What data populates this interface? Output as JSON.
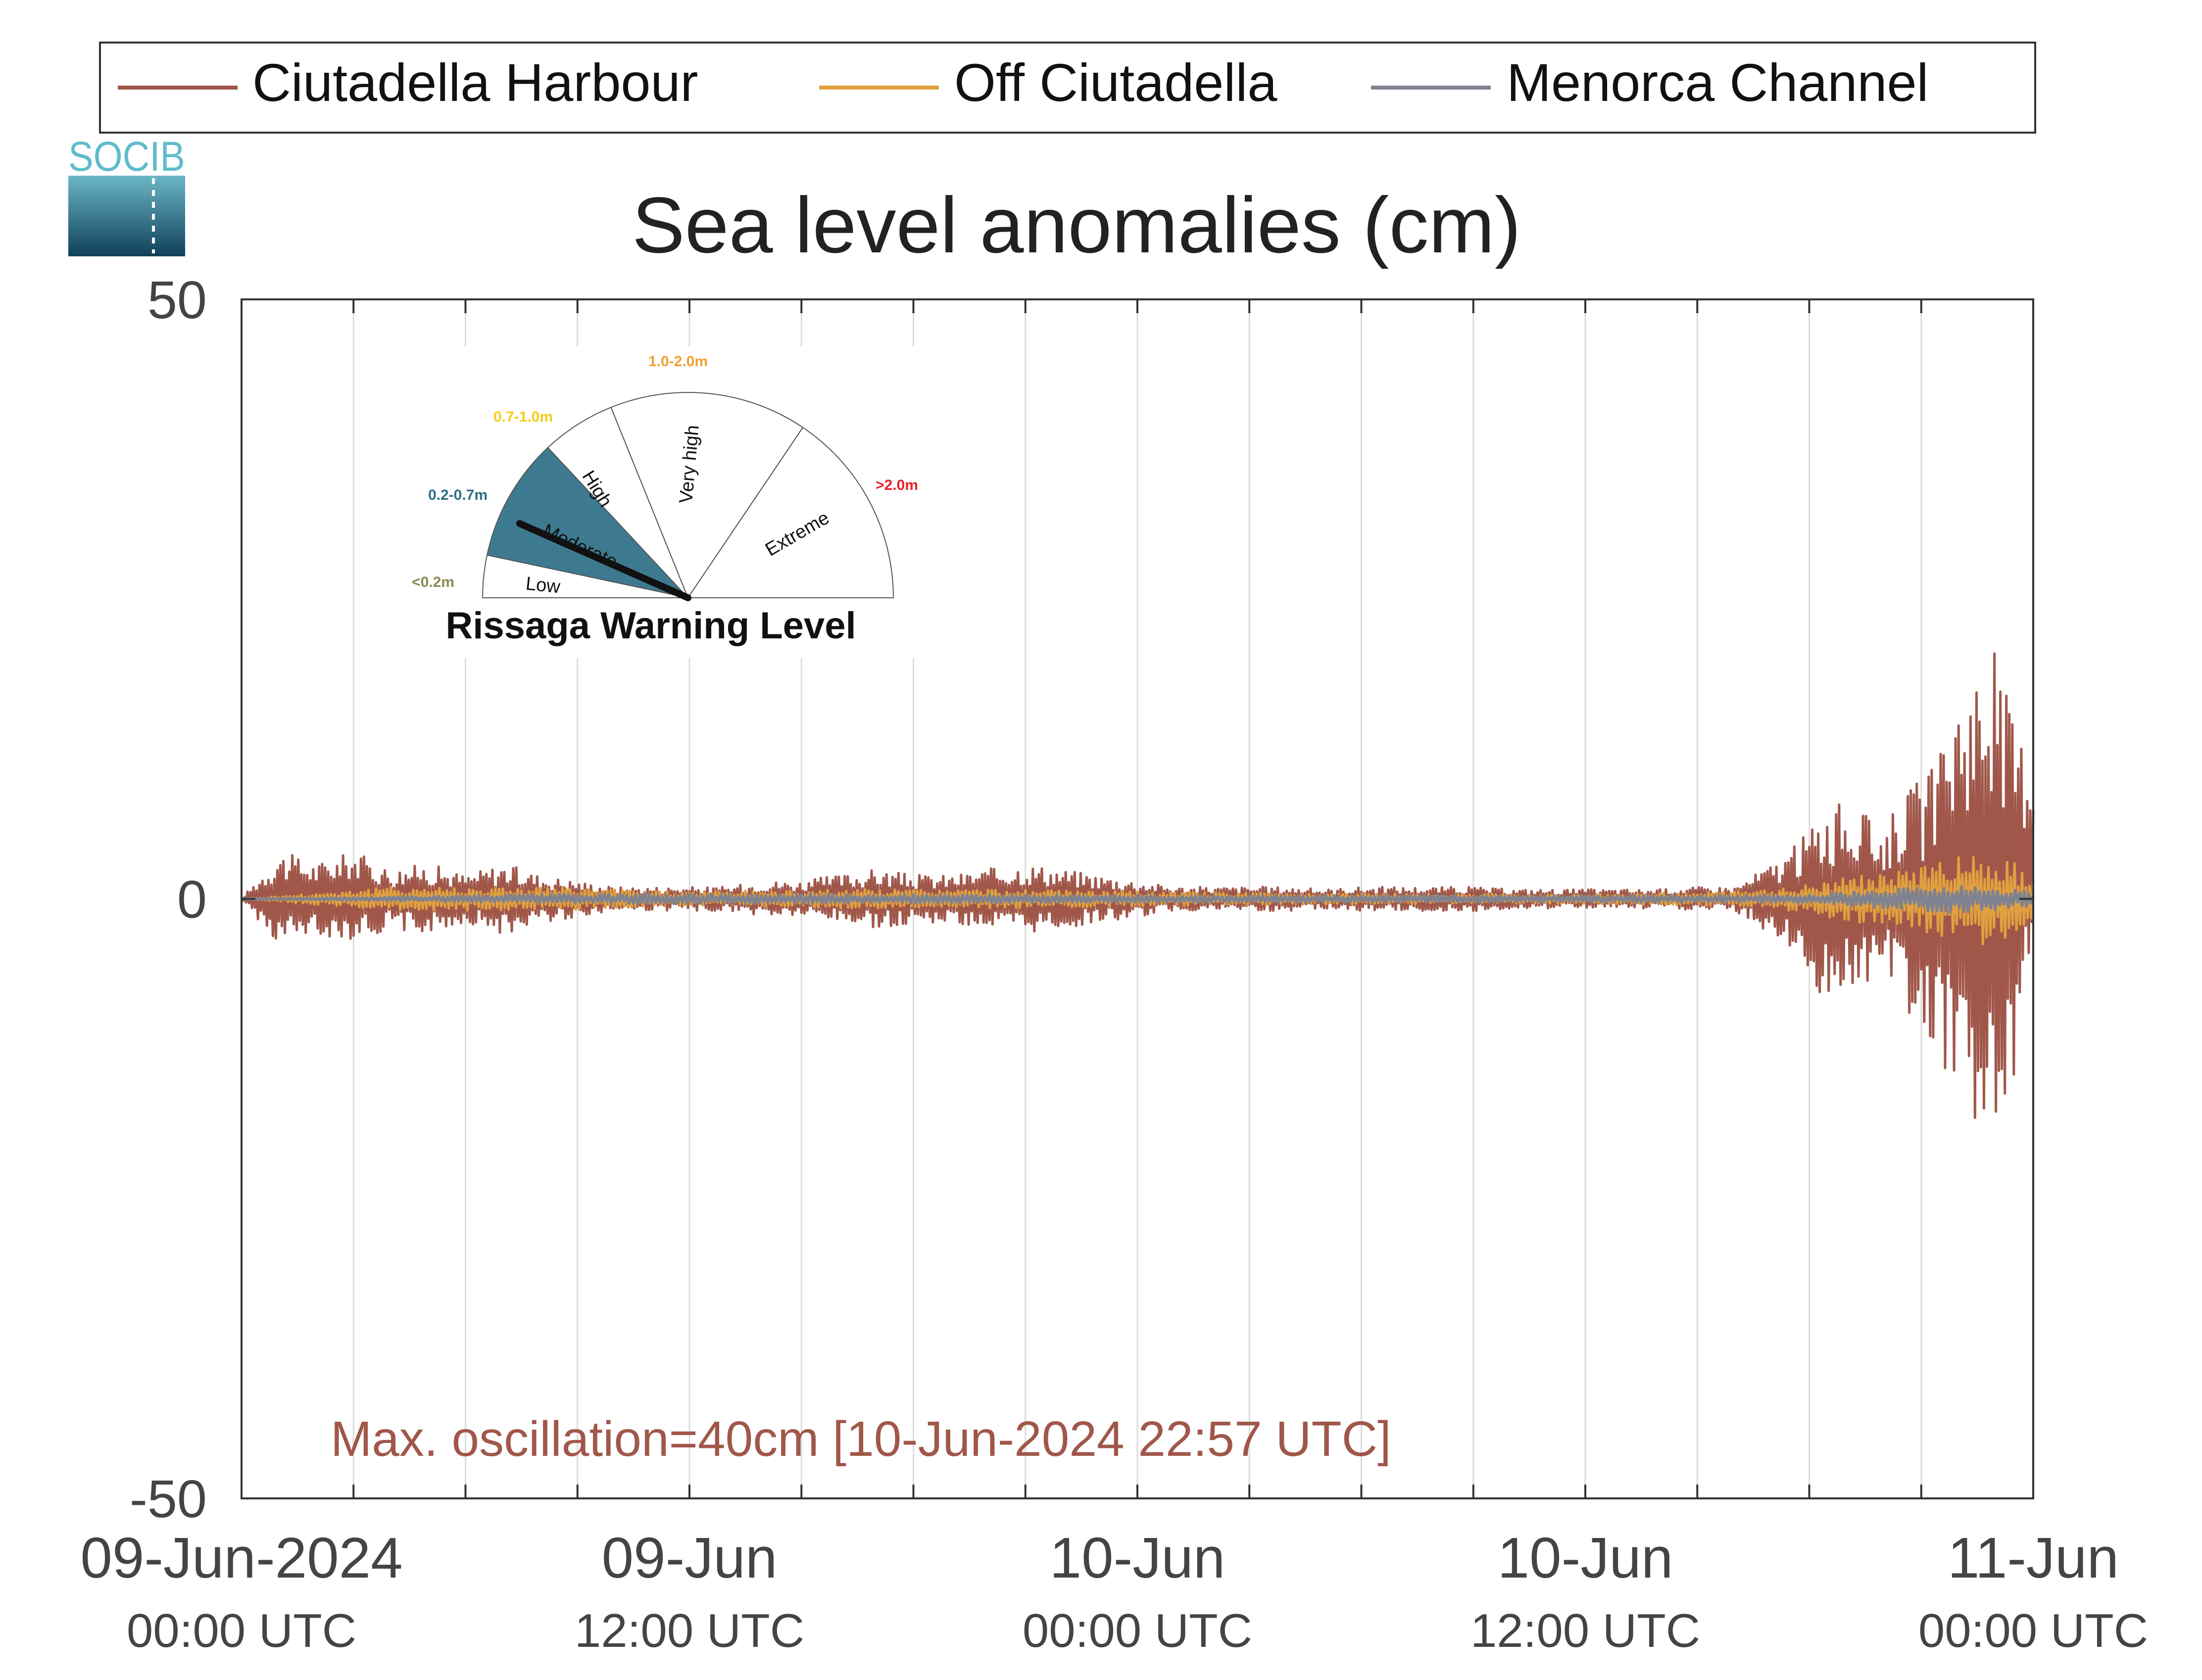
{
  "logo": {
    "text": "SOCIB"
  },
  "chart_data": {
    "type": "line",
    "title": "Sea level anomalies (cm)",
    "xlabel": "",
    "ylabel": "",
    "x_unit": "hours from 09-Jun-2024 00:00 UTC",
    "xlim": [
      0,
      48
    ],
    "ylim": [
      -50,
      50
    ],
    "yticks": [
      -50,
      0,
      50
    ],
    "ytick_labels": [
      "-50",
      "0",
      "50"
    ],
    "xticks": [
      {
        "x": 0,
        "date": "09-Jun-2024",
        "time": "00:00 UTC"
      },
      {
        "x": 12,
        "date": "09-Jun",
        "time": "12:00 UTC"
      },
      {
        "x": 24,
        "date": "10-Jun",
        "time": "00:00 UTC"
      },
      {
        "x": 36,
        "date": "10-Jun",
        "time": "12:00 UTC"
      },
      {
        "x": 48,
        "date": "11-Jun",
        "time": "00:00 UTC"
      }
    ],
    "minor_grid_x": [
      3,
      6,
      9,
      15,
      18,
      21,
      27,
      30,
      33,
      39,
      42,
      45
    ],
    "grid": true,
    "legend_position": "top",
    "series": [
      {
        "name": "Ciutadella Harbour",
        "color": "#a0574a",
        "envelope_x": [
          0,
          1,
          2,
          3,
          4,
          5,
          6,
          7,
          8,
          9,
          10,
          11,
          12,
          13,
          14,
          15,
          16,
          17,
          18,
          19,
          20,
          21,
          22,
          23,
          24,
          25,
          26,
          27,
          28,
          29,
          30,
          31,
          32,
          33,
          34,
          35,
          36,
          37,
          38,
          39,
          40,
          40.5,
          41,
          41.5,
          42,
          42.5,
          43,
          43.5,
          44,
          44.5,
          45,
          45.5,
          46,
          46.5,
          47,
          47.5,
          48
        ],
        "envelope_upper": [
          0,
          4,
          3,
          4,
          2.5,
          3,
          2,
          3,
          2,
          1.5,
          1,
          1,
          1,
          1,
          1.5,
          1.5,
          2,
          2.5,
          2,
          2,
          2.5,
          3,
          2.5,
          2,
          1.5,
          1,
          1,
          1,
          1,
          0.8,
          1,
          1,
          1,
          1,
          0.8,
          0.8,
          0.8,
          0.8,
          0.8,
          1,
          1,
          2,
          3,
          4,
          6,
          8,
          8,
          7,
          6,
          9,
          10,
          12,
          18,
          20,
          21,
          15,
          12
        ],
        "envelope_lower": [
          0,
          -4,
          -3,
          -3.5,
          -2.5,
          -3,
          -2,
          -3,
          -2,
          -1.5,
          -1,
          -1,
          -1,
          -1,
          -1.5,
          -1.5,
          -2,
          -2.5,
          -2,
          -2,
          -2.5,
          -3,
          -2.5,
          -2,
          -1.5,
          -1,
          -1,
          -1,
          -1,
          -0.8,
          -1,
          -1,
          -1,
          -1,
          -0.8,
          -0.8,
          -0.8,
          -0.8,
          -0.8,
          -1,
          -1,
          -2,
          -3,
          -4,
          -7,
          -9,
          -8,
          -7,
          -6,
          -9,
          -12,
          -14,
          -16,
          -19,
          -18,
          -15,
          -6
        ]
      },
      {
        "name": "Off Ciutadella",
        "color": "#e0a040",
        "envelope_x": [
          0,
          4,
          8,
          12,
          16,
          20,
          24,
          28,
          32,
          36,
          40,
          41,
          42,
          43,
          44,
          45,
          46,
          47,
          48
        ],
        "envelope_upper": [
          0,
          1,
          1,
          0.6,
          0.8,
          0.8,
          0.6,
          0.5,
          0.4,
          0.4,
          0.6,
          0.8,
          1.2,
          2,
          2,
          3,
          3.5,
          4,
          2
        ],
        "envelope_lower": [
          0,
          -1,
          -1,
          -0.6,
          -0.8,
          -0.8,
          -0.6,
          -0.5,
          -0.4,
          -0.4,
          -0.6,
          -0.8,
          -1.2,
          -2,
          -2,
          -3,
          -3.5,
          -4,
          -2
        ]
      },
      {
        "name": "Menorca Channel",
        "color": "#7f8290",
        "envelope_x": [
          0,
          8,
          16,
          24,
          32,
          40,
          42,
          44,
          46,
          48
        ],
        "envelope_upper": [
          0,
          0.4,
          0.4,
          0.3,
          0.3,
          0.3,
          0.4,
          0.8,
          1.2,
          0.6
        ],
        "envelope_lower": [
          0,
          -0.4,
          -0.4,
          -0.3,
          -0.3,
          -0.3,
          -0.4,
          -0.8,
          -1.2,
          -0.6
        ]
      }
    ],
    "annotation": "Max. oscillation=40cm [10-Jun-2024 22:57 UTC]",
    "annotation_color": "#a0574a"
  },
  "gauge": {
    "title": "Rissaga Warning Level",
    "needle_value": "0.2-0.7m",
    "active_color": "#3d7a90",
    "levels": [
      {
        "name": "Low",
        "range": "<0.2m",
        "range_color": "#8a8a55"
      },
      {
        "name": "Moderate",
        "range": "0.2-0.7m",
        "range_color": "#2f6e86"
      },
      {
        "name": "High",
        "range": "0.7-1.0m",
        "range_color": "#f2cc1a"
      },
      {
        "name": "Very high",
        "range": "1.0-2.0m",
        "range_color": "#f0a030"
      },
      {
        "name": "Extreme",
        "range": ">2.0m",
        "range_color": "#e8202a"
      }
    ]
  }
}
